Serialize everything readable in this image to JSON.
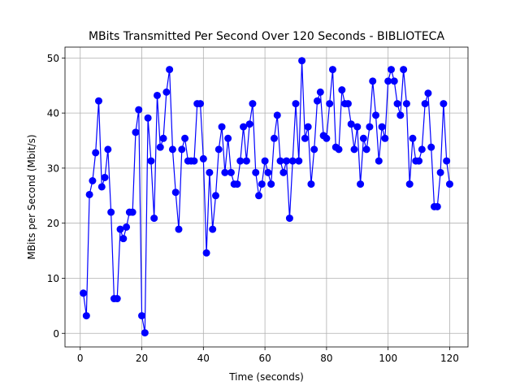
{
  "chart_data": {
    "type": "line",
    "title": "MBits Transmitted Per Second Over 120 Seconds - BIBLIOTECA",
    "xlabel": "Time (seconds)",
    "ylabel": "MBits per Second (Mbit/s)",
    "xlim": [
      -4.95,
      125.95
    ],
    "ylim": [
      -2.47,
      51.97
    ],
    "xticks": [
      0,
      20,
      40,
      60,
      80,
      100,
      120
    ],
    "yticks": [
      0,
      10,
      20,
      30,
      40,
      50
    ],
    "grid": true,
    "series": [
      {
        "color": "#0000ff",
        "marker": "circle",
        "x": [
          1,
          2,
          3,
          4,
          5,
          6,
          7,
          8,
          9,
          10,
          11,
          12,
          13,
          14,
          15,
          16,
          17,
          18,
          19,
          20,
          21,
          22,
          23,
          24,
          25,
          26,
          27,
          28,
          29,
          30,
          31,
          32,
          33,
          34,
          35,
          36,
          37,
          38,
          39,
          40,
          41,
          42,
          43,
          44,
          45,
          46,
          47,
          48,
          49,
          50,
          51,
          52,
          53,
          54,
          55,
          56,
          57,
          58,
          59,
          60,
          61,
          62,
          63,
          64,
          65,
          66,
          67,
          68,
          69,
          70,
          71,
          72,
          73,
          74,
          75,
          76,
          77,
          78,
          79,
          80,
          81,
          82,
          83,
          84,
          85,
          86,
          87,
          88,
          89,
          90,
          91,
          92,
          93,
          94,
          95,
          96,
          97,
          98,
          99,
          100,
          101,
          102,
          103,
          104,
          105,
          106,
          107,
          108,
          109,
          110,
          111,
          112,
          113,
          114,
          115,
          116,
          117,
          118,
          119,
          120
        ],
        "values": [
          7.3,
          3.2,
          25.2,
          27.7,
          32.8,
          42.2,
          26.6,
          28.3,
          33.4,
          22.0,
          6.3,
          6.3,
          18.9,
          17.2,
          19.3,
          22.0,
          22.0,
          36.5,
          40.6,
          3.2,
          0.1,
          39.1,
          31.3,
          20.9,
          43.2,
          33.8,
          35.4,
          43.8,
          47.9,
          33.4,
          25.6,
          18.9,
          33.4,
          35.4,
          31.3,
          31.3,
          31.3,
          41.7,
          41.7,
          31.7,
          14.6,
          29.2,
          18.9,
          25.0,
          33.4,
          37.5,
          29.2,
          35.4,
          29.2,
          27.1,
          27.1,
          31.3,
          37.5,
          31.3,
          38.0,
          41.7,
          29.2,
          25.0,
          27.1,
          31.3,
          29.2,
          27.1,
          35.4,
          39.6,
          31.3,
          29.2,
          31.3,
          20.9,
          31.3,
          41.7,
          31.3,
          49.5,
          35.4,
          37.5,
          27.1,
          33.4,
          42.2,
          43.8,
          35.9,
          35.4,
          41.7,
          47.9,
          33.8,
          33.4,
          44.2,
          41.7,
          41.7,
          38.0,
          33.4,
          37.5,
          27.1,
          35.4,
          33.4,
          37.5,
          45.8,
          39.6,
          31.3,
          37.5,
          35.4,
          45.8,
          47.9,
          45.8,
          41.7,
          39.6,
          47.9,
          41.7,
          27.1,
          35.4,
          31.3,
          31.3,
          33.4,
          41.7,
          43.6,
          33.8,
          23.0,
          23.0,
          29.2,
          41.7,
          31.3,
          27.1
        ]
      }
    ]
  }
}
